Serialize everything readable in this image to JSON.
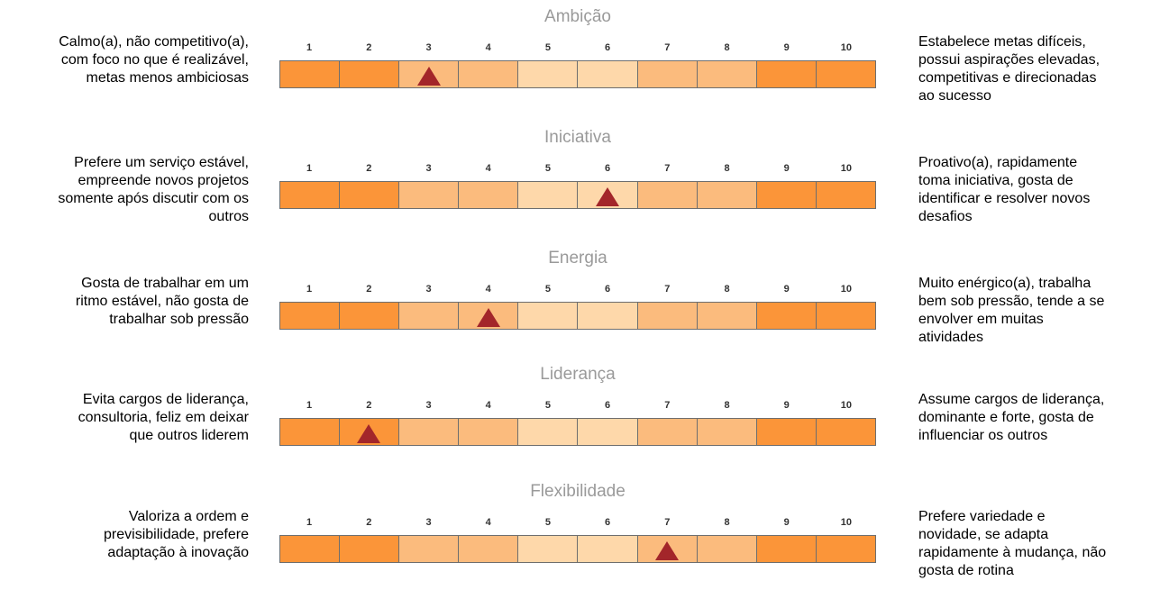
{
  "colors": {
    "dark": "#fb9539",
    "medium": "#fbbb7d",
    "light": "#fed8aa",
    "marker": "#a3262a",
    "title": "#9a9a9a"
  },
  "chart_data": {
    "type": "bar",
    "categories": [
      "1",
      "2",
      "3",
      "4",
      "5",
      "6",
      "7",
      "8",
      "9",
      "10"
    ],
    "cell_shades": [
      "dark",
      "dark",
      "medium",
      "medium",
      "light",
      "light",
      "medium",
      "medium",
      "dark",
      "dark"
    ],
    "scales": [
      {
        "title": "Ambição",
        "left_text": [
          "Calmo(a), não competitivo(a),",
          "com foco no que é realizável,",
          "metas menos ambiciosas"
        ],
        "right_text": [
          "Estabelece metas difíceis,",
          "possui aspirações elevadas,",
          "competitivas e direcionadas",
          "ao sucesso"
        ],
        "value": 3
      },
      {
        "title": "Iniciativa",
        "left_text": [
          "Prefere um serviço estável,",
          "empreende novos projetos",
          "somente após discutir com os",
          "outros"
        ],
        "right_text": [
          "Proativo(a), rapidamente",
          "toma iniciativa, gosta de",
          "identificar e resolver novos",
          "desafios"
        ],
        "value": 6
      },
      {
        "title": "Energia",
        "left_text": [
          "Gosta de trabalhar em um",
          "ritmo estável, não gosta de",
          "trabalhar sob pressão"
        ],
        "right_text": [
          "Muito enérgico(a), trabalha",
          "bem sob pressão, tende a se",
          "envolver em muitas",
          "atividades"
        ],
        "value": 4
      },
      {
        "title": "Liderança",
        "left_text": [
          "Evita cargos de liderança,",
          "consultoria, feliz em deixar",
          "que outros liderem"
        ],
        "right_text": [
          "Assume cargos de liderança,",
          "dominante e forte, gosta de",
          "influenciar os outros"
        ],
        "value": 2
      },
      {
        "title": "Flexibilidade",
        "left_text": [
          "Valoriza a ordem e",
          "previsibilidade, prefere",
          "adaptação à inovação"
        ],
        "right_text": [
          "Prefere variedade e",
          "novidade, se adapta",
          "rapidamente à mudança, não",
          "gosta de rotina"
        ],
        "value": 7
      }
    ]
  }
}
